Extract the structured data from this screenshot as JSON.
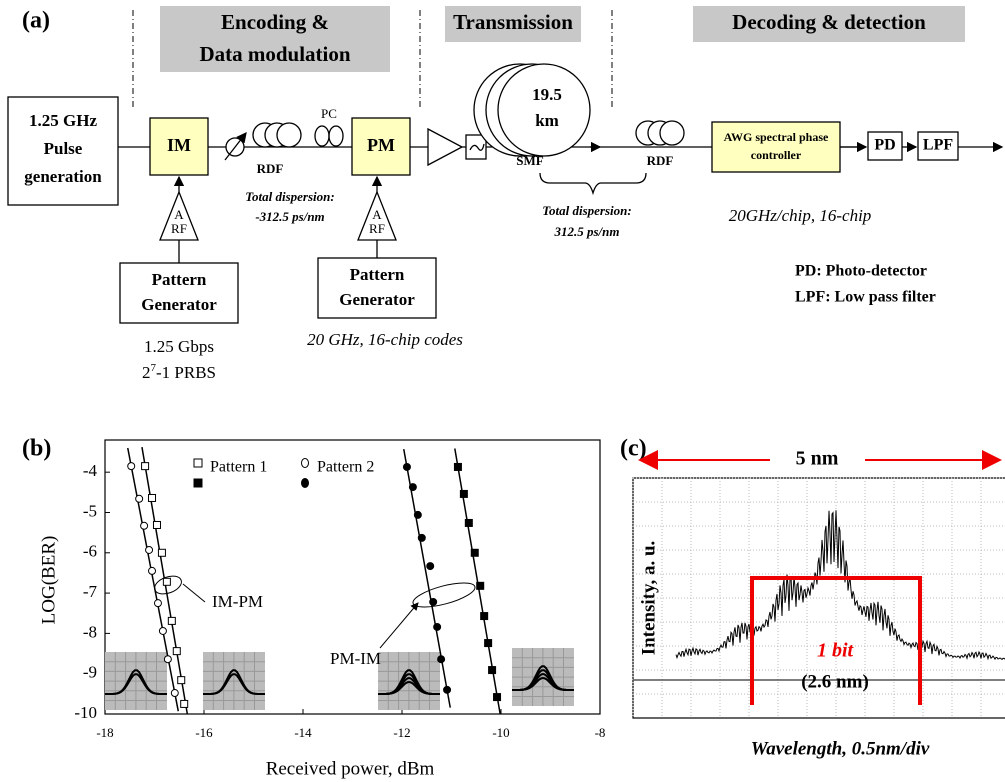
{
  "panel_a": {
    "label": "(a)",
    "sections": [
      [
        "Encoding &",
        "Data modulation"
      ],
      [
        "Transmission"
      ],
      [
        "Decoding & detection"
      ]
    ],
    "source": [
      "1.25 GHz",
      "Pulse",
      "generation"
    ],
    "im": "IM",
    "pm": "PM",
    "amp": [
      "A",
      "RF"
    ],
    "pattern_generator_1": [
      "Pattern",
      "Generator"
    ],
    "pattern_generator_2": [
      "Pattern",
      "Generator"
    ],
    "pg1_spec": [
      "1.25 Gbps",
      "2",
      "7",
      "-1 PRBS"
    ],
    "pg2_spec": "20 GHz, 16-chip codes",
    "pc": "PC",
    "rdf_1": "RDF",
    "rdf_2": "RDF",
    "dispersion_1": [
      "Total dispersion:",
      "-312.5 ps/nm"
    ],
    "dispersion_2": [
      "Total dispersion:",
      "312.5 ps/nm"
    ],
    "fiber": [
      "19.5",
      "km"
    ],
    "smf": "SMF",
    "awg": [
      "AWG spectral phase",
      "controller"
    ],
    "awg_spec": "20GHz/chip, 16-chip",
    "pd": "PD",
    "lpf": "LPF",
    "legend": [
      "PD: Photo-detector",
      "LPF: Low pass filter"
    ]
  },
  "chart_data": {
    "type": "scatter",
    "label": "(b)",
    "x_label": "Received power, dBm",
    "y_label": "LOG(BER)",
    "xlim": [
      -18,
      -8
    ],
    "ylim": [
      -10,
      -3.4
    ],
    "xticks": [
      -18,
      -16,
      -14,
      -12,
      -10,
      -8
    ],
    "yticks": [
      -10,
      -9,
      -8,
      -7,
      -6,
      -5,
      -4
    ],
    "annotations": [
      "IM-PM",
      "PM-IM"
    ],
    "series": [
      {
        "name": "Pattern 1",
        "marker": "square",
        "filled": false,
        "color": "#000000",
        "x": [
          -17.19,
          -17.05,
          -16.95,
          -16.85,
          -16.75,
          -16.65,
          -16.55,
          -16.46,
          -16.4
        ],
        "values": [
          -3.85,
          -4.64,
          -5.31,
          -6.0,
          -6.72,
          -7.69,
          -8.44,
          -9.16,
          -9.75
        ]
      },
      {
        "name": "Pattern 2",
        "marker": "circle",
        "filled": false,
        "color": "#000000",
        "x": [
          -17.47,
          -17.31,
          -17.21,
          -17.11,
          -17.05,
          -16.93,
          -16.83,
          -16.73,
          -16.59
        ],
        "values": [
          -3.85,
          -4.66,
          -5.33,
          -5.93,
          -6.45,
          -7.25,
          -7.94,
          -8.64,
          -9.48
        ]
      },
      {
        "name": "Pattern 1",
        "marker": "square",
        "filled": true,
        "color": "#000000",
        "x": [
          -10.87,
          -10.75,
          -10.65,
          -10.53,
          -10.42,
          -10.34,
          -10.26,
          -10.18,
          -10.08
        ],
        "values": [
          -3.87,
          -4.54,
          -5.26,
          -6.0,
          -6.82,
          -7.57,
          -8.24,
          -8.91,
          -9.58
        ]
      },
      {
        "name": "Pattern 2",
        "marker": "circle",
        "filled": true,
        "color": "#000000",
        "x": [
          -11.9,
          -11.78,
          -11.68,
          -11.6,
          -11.43,
          -11.37,
          -11.29,
          -11.21,
          -11.09
        ],
        "values": [
          -3.87,
          -4.37,
          -5.06,
          -5.63,
          -6.33,
          -7.22,
          -7.84,
          -8.64,
          -9.4
        ]
      }
    ]
  },
  "panel_c": {
    "label": "(c)",
    "span": "5 nm",
    "y_label": "Intensity, a. u.",
    "bit": "1 bit",
    "bit_width": "(2.6 nm)",
    "x_label": "Wavelength, 0.5nm/div"
  }
}
